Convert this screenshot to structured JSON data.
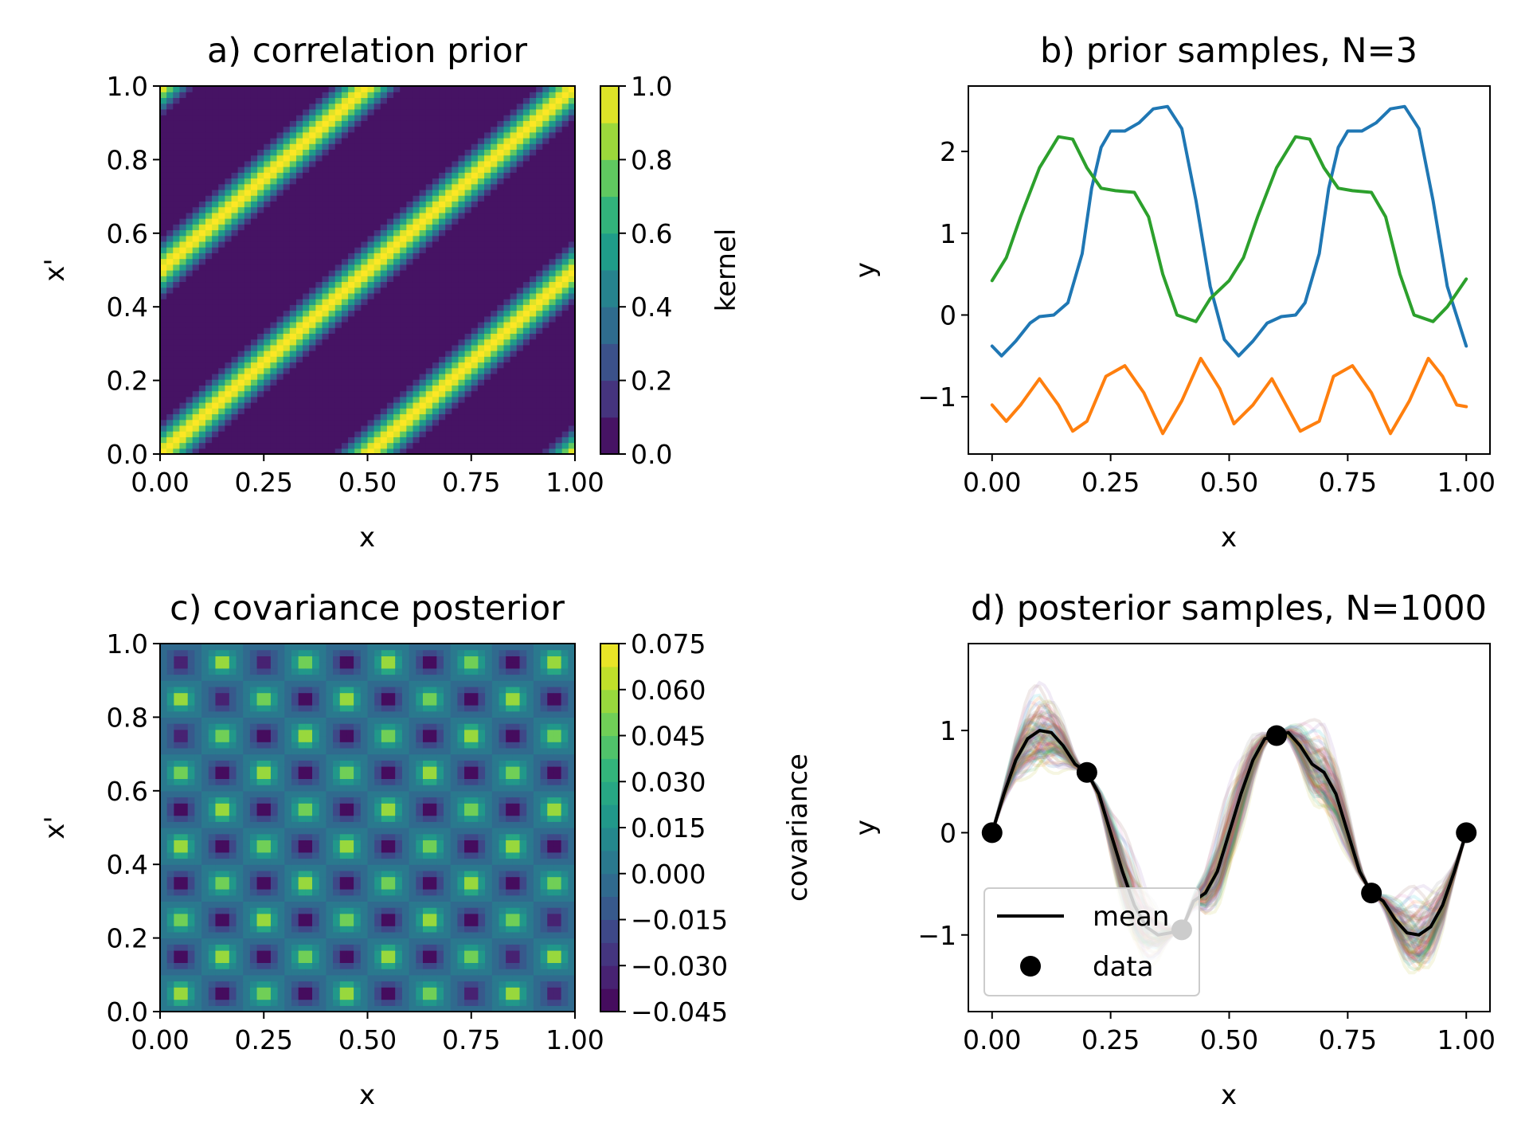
{
  "chart_data": [
    {
      "type": "heatmap",
      "title": "a) correlation prior",
      "xlabel": "x",
      "ylabel": "x'",
      "xlim": [
        0,
        1
      ],
      "ylim": [
        0,
        1
      ],
      "xticks": [
        "0.00",
        "0.25",
        "0.50",
        "0.75",
        "1.00"
      ],
      "yticks": [
        "0.0",
        "0.2",
        "0.4",
        "0.6",
        "0.8",
        "1.0"
      ],
      "colorbar": {
        "label": "kernel",
        "ticks": [
          "0.0",
          "0.2",
          "0.4",
          "0.6",
          "0.8",
          "1.0"
        ],
        "levels": [
          0.0,
          0.1,
          0.2,
          0.3,
          0.4,
          0.5,
          0.6,
          0.7,
          0.8,
          0.9,
          1.0
        ],
        "colormap": "viridis"
      },
      "pattern": "periodic kernel along the diagonal, period 0.5",
      "period": 0.5,
      "lengthscale": 0.5
    },
    {
      "type": "line",
      "title": "b) prior samples, N=3",
      "xlabel": "x",
      "ylabel": "y",
      "xlim": [
        -0.05,
        1.05
      ],
      "ylim": [
        -1.7,
        2.8
      ],
      "xticks": [
        "0.00",
        "0.25",
        "0.50",
        "0.75",
        "1.00"
      ],
      "yticks": [
        "−1",
        "0",
        "1",
        "2"
      ],
      "ytick_values": [
        -1,
        0,
        1,
        2
      ],
      "series": [
        {
          "color": "#1f77b4",
          "x": [
            0.0,
            0.02,
            0.05,
            0.08,
            0.1,
            0.13,
            0.16,
            0.19,
            0.21,
            0.23,
            0.25,
            0.28,
            0.31,
            0.34,
            0.37,
            0.4,
            0.43,
            0.46,
            0.49,
            0.52,
            0.55,
            0.58,
            0.61,
            0.64,
            0.66,
            0.69,
            0.71,
            0.73,
            0.75,
            0.78,
            0.81,
            0.84,
            0.87,
            0.9,
            0.93,
            0.96,
            1.0
          ],
          "y": [
            -0.38,
            -0.5,
            -0.32,
            -0.1,
            -0.02,
            0.0,
            0.15,
            0.75,
            1.55,
            2.05,
            2.25,
            2.25,
            2.35,
            2.52,
            2.55,
            2.28,
            1.4,
            0.35,
            -0.3,
            -0.5,
            -0.32,
            -0.1,
            -0.02,
            0.0,
            0.15,
            0.75,
            1.55,
            2.05,
            2.25,
            2.25,
            2.35,
            2.52,
            2.55,
            2.28,
            1.4,
            0.35,
            -0.38
          ]
        },
        {
          "color": "#ff7f0e",
          "x": [
            0.0,
            0.03,
            0.06,
            0.1,
            0.14,
            0.17,
            0.2,
            0.24,
            0.28,
            0.32,
            0.36,
            0.4,
            0.44,
            0.48,
            0.51,
            0.55,
            0.59,
            0.62,
            0.65,
            0.69,
            0.72,
            0.76,
            0.8,
            0.84,
            0.88,
            0.92,
            0.95,
            0.98,
            1.0
          ],
          "y": [
            -1.1,
            -1.3,
            -1.1,
            -0.78,
            -1.1,
            -1.42,
            -1.3,
            -0.75,
            -0.62,
            -0.95,
            -1.45,
            -1.05,
            -0.53,
            -0.9,
            -1.33,
            -1.1,
            -0.78,
            -1.1,
            -1.42,
            -1.3,
            -0.75,
            -0.62,
            -0.95,
            -1.45,
            -1.05,
            -0.53,
            -0.75,
            -1.1,
            -1.12
          ]
        },
        {
          "color": "#2ca02c",
          "x": [
            0.0,
            0.03,
            0.06,
            0.1,
            0.14,
            0.17,
            0.2,
            0.23,
            0.26,
            0.3,
            0.33,
            0.36,
            0.39,
            0.43,
            0.46,
            0.5,
            0.53,
            0.56,
            0.6,
            0.64,
            0.67,
            0.7,
            0.73,
            0.76,
            0.8,
            0.83,
            0.86,
            0.89,
            0.93,
            0.96,
            1.0
          ],
          "y": [
            0.42,
            0.7,
            1.2,
            1.8,
            2.18,
            2.15,
            1.8,
            1.55,
            1.52,
            1.5,
            1.2,
            0.5,
            0.0,
            -0.08,
            0.2,
            0.42,
            0.7,
            1.2,
            1.8,
            2.18,
            2.15,
            1.8,
            1.55,
            1.52,
            1.5,
            1.2,
            0.5,
            0.0,
            -0.08,
            0.1,
            0.44
          ]
        }
      ]
    },
    {
      "type": "heatmap",
      "title": "c) covariance posterior",
      "xlabel": "x",
      "ylabel": "x'",
      "xlim": [
        0,
        1
      ],
      "ylim": [
        0,
        1
      ],
      "xticks": [
        "0.00",
        "0.25",
        "0.50",
        "0.75",
        "1.00"
      ],
      "yticks": [
        "0.0",
        "0.2",
        "0.4",
        "0.6",
        "0.8",
        "1.0"
      ],
      "colorbar": {
        "label": "covariance",
        "ticks": [
          "0.075",
          "0.060",
          "0.045",
          "0.030",
          "0.015",
          "0.000",
          "−0.015",
          "−0.030",
          "−0.045"
        ],
        "levels": [
          -0.045,
          -0.0375,
          -0.03,
          -0.0225,
          -0.015,
          -0.0075,
          0.0,
          0.0075,
          0.015,
          0.0225,
          0.03,
          0.0375,
          0.045,
          0.0525,
          0.06,
          0.0675,
          0.075
        ],
        "colormap": "viridis"
      },
      "pattern": "checkerboard of positive and negative lobes around the diagonal, cells of width 0.1"
    },
    {
      "type": "line",
      "title": "d) posterior samples, N=1000",
      "xlabel": "x",
      "ylabel": "y",
      "xlim": [
        -0.05,
        1.05
      ],
      "ylim": [
        -1.75,
        1.85
      ],
      "xticks": [
        "0.00",
        "0.25",
        "0.50",
        "0.75",
        "1.00"
      ],
      "yticks": [
        "−1",
        "0",
        "1"
      ],
      "ytick_values": [
        -1,
        0,
        1
      ],
      "series": [
        {
          "name": "mean",
          "color": "#000000",
          "x": [
            0.0,
            0.025,
            0.05,
            0.075,
            0.1,
            0.125,
            0.15,
            0.175,
            0.2,
            0.225,
            0.25,
            0.275,
            0.3,
            0.325,
            0.35,
            0.375,
            0.4,
            0.425,
            0.45,
            0.475,
            0.5,
            0.525,
            0.55,
            0.575,
            0.6,
            0.625,
            0.65,
            0.675,
            0.7,
            0.725,
            0.75,
            0.775,
            0.8,
            0.825,
            0.85,
            0.875,
            0.9,
            0.925,
            0.95,
            0.975,
            1.0
          ],
          "y": [
            0.0,
            0.38,
            0.71,
            0.92,
            1.0,
            0.98,
            0.85,
            0.67,
            0.59,
            0.38,
            0.0,
            -0.38,
            -0.71,
            -0.92,
            -1.0,
            -0.98,
            -0.95,
            -0.67,
            -0.59,
            -0.38,
            0.0,
            0.38,
            0.71,
            0.92,
            0.95,
            0.98,
            0.85,
            0.67,
            0.59,
            0.38,
            0.0,
            -0.38,
            -0.59,
            -0.67,
            -0.85,
            -0.98,
            -1.0,
            -0.92,
            -0.71,
            -0.38,
            0.0
          ]
        }
      ],
      "scatter": {
        "name": "data",
        "color": "#000000",
        "x": [
          0.0,
          0.2,
          0.4,
          0.6,
          0.8,
          1.0
        ],
        "y": [
          0.0,
          0.59,
          -0.95,
          0.95,
          -0.59,
          0.0
        ]
      },
      "samples_band": "1000 semi-transparent posterior sample curves around the mean",
      "legend": {
        "entries": [
          "mean",
          "data"
        ],
        "placement": "lower-left"
      }
    }
  ]
}
